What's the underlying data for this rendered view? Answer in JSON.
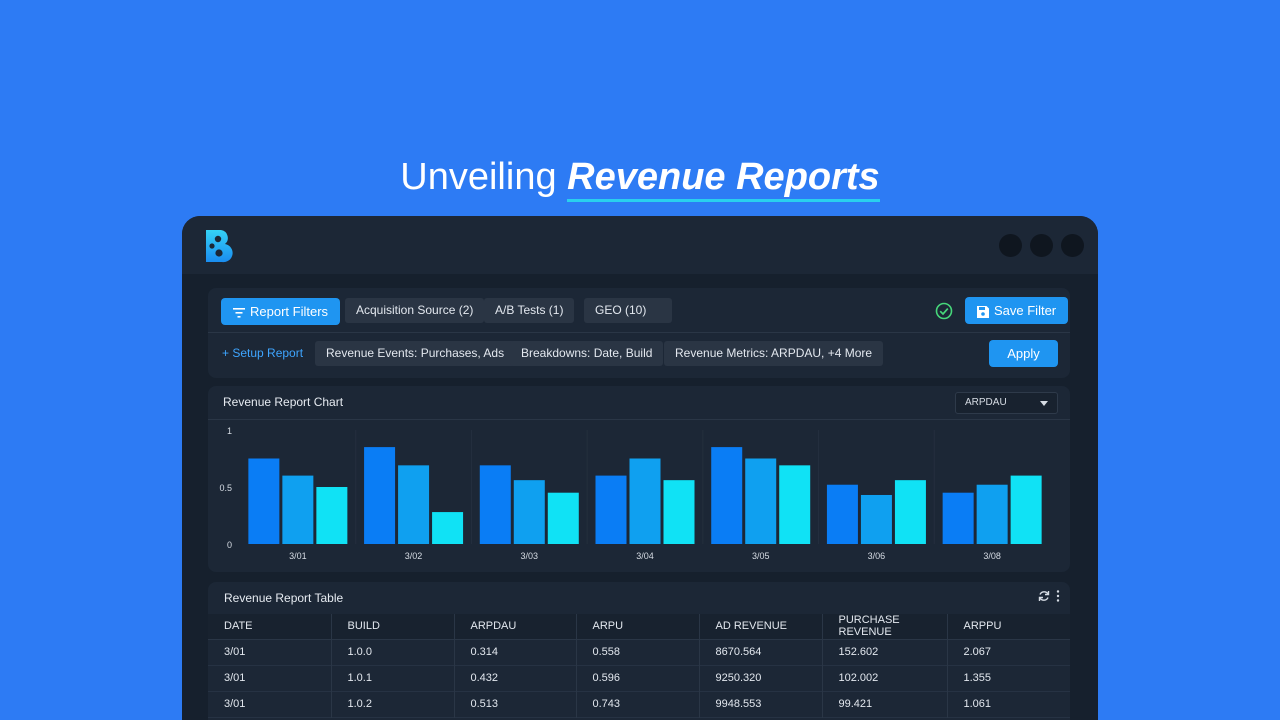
{
  "headline": {
    "plain": "Unveiling ",
    "bold": "Revenue Reports"
  },
  "filters": {
    "report_filters_label": "Report Filters",
    "chips_row1": [
      "Acquisition Source (2)",
      "A/B Tests (1)",
      "GEO (10)"
    ],
    "save_filter_label": "Save Filter",
    "setup_report_label": "+ Setup Report",
    "chips_row2": [
      "Revenue Events: Purchases, Ads",
      "Breakdowns: Date, Build",
      "Revenue Metrics: ARPDAU, +4 More"
    ],
    "apply_label": "Apply"
  },
  "chart": {
    "title": "Revenue Report Chart",
    "selected_metric": "ARPDAU"
  },
  "chart_data": {
    "type": "bar",
    "categories": [
      "3/01",
      "3/02",
      "3/03",
      "3/04",
      "3/05",
      "3/06",
      "3/08"
    ],
    "series": [
      {
        "values": [
          0.75,
          0.85,
          0.69,
          0.6,
          0.85,
          0.52,
          0.45
        ]
      },
      {
        "values": [
          0.6,
          0.69,
          0.56,
          0.75,
          0.75,
          0.43,
          0.52
        ]
      },
      {
        "values": [
          0.5,
          0.28,
          0.45,
          0.56,
          0.69,
          0.56,
          0.6
        ]
      }
    ],
    "colors": [
      "#0a7df5",
      "#0fa0f0",
      "#10e2f5"
    ],
    "yticks": [
      "0",
      "0.5",
      "1"
    ],
    "ylim": [
      0,
      1
    ],
    "grid": false,
    "legend": "none"
  },
  "table": {
    "title": "Revenue Report Table",
    "columns": [
      "DATE",
      "BUILD",
      "ARPDAU",
      "ARPU",
      "AD REVENUE",
      "PURCHASE REVENUE",
      "ARPPU"
    ],
    "rows": [
      [
        "3/01",
        "1.0.0",
        "0.314",
        "0.558",
        "8670.564",
        "152.602",
        "2.067"
      ],
      [
        "3/01",
        "1.0.1",
        "0.432",
        "0.596",
        "9250.320",
        "102.002",
        "1.355"
      ],
      [
        "3/01",
        "1.0.2",
        "0.513",
        "0.743",
        "9948.553",
        "99.421",
        "1.061"
      ]
    ]
  },
  "icons": {
    "logo": "brand-logo-icon",
    "filter": "filter-icon",
    "check": "check-circle-icon",
    "save": "save-icon",
    "refresh": "refresh-icon",
    "more": "more-vertical-icon"
  },
  "colors": {
    "page_bg": "#2d7bf4",
    "window_bg": "#16202d",
    "panel_bg": "#1c2736",
    "accent": "#1f95f1",
    "check_green": "#46d77a"
  }
}
